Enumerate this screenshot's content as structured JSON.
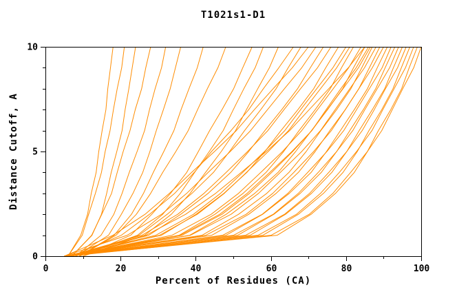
{
  "chart_data": {
    "type": "line",
    "title": "T1021s1-D1",
    "xlabel": "Percent of Residues (CA)",
    "ylabel": "Distance Cutoff, A",
    "xlim": [
      0,
      100
    ],
    "ylim": [
      0,
      10
    ],
    "xticks": {
      "major": [
        0,
        20,
        40,
        60,
        80,
        100
      ],
      "minor": [
        10,
        30,
        50,
        70,
        90
      ]
    },
    "yticks": {
      "major": [
        0,
        5,
        10
      ],
      "minor": [
        1,
        2,
        3,
        4,
        6,
        7,
        8,
        9
      ]
    },
    "grid": false,
    "legend": false,
    "line_color": "#FF8C00",
    "axis_color": "#000000",
    "background": "#FFFFFF",
    "y_levels": [
      0,
      1,
      2,
      3,
      4,
      5,
      6,
      7,
      8,
      9,
      10
    ],
    "series": [
      {
        "x": [
          6,
          9.4,
          11.2,
          12.2,
          13.5,
          14.2,
          15.1,
          16.1,
          16.6,
          17.3,
          18
        ]
      },
      {
        "x": [
          6,
          9.8,
          11.5,
          13.3,
          14.9,
          15.9,
          17.2,
          18.1,
          19.1,
          20.3,
          21
        ]
      },
      {
        "x": [
          7,
          12.4,
          14.9,
          16.3,
          17.5,
          19.0,
          20.4,
          21.2,
          22.2,
          23.1,
          24
        ]
      },
      {
        "x": [
          7,
          12.3,
          15.0,
          17.6,
          19.1,
          20.7,
          22.5,
          23.9,
          25.6,
          26.7,
          28
        ]
      },
      {
        "x": [
          8,
          14.8,
          18.2,
          20.4,
          22.3,
          24.4,
          26.4,
          27.7,
          29.2,
          30.9,
          32
        ]
      },
      {
        "x": [
          8,
          16.8,
          20.2,
          23.3,
          25.9,
          27.8,
          29.5,
          31.4,
          33.2,
          34.6,
          36
        ]
      },
      {
        "x": [
          9,
          18.3,
          22.9,
          26.1,
          28.7,
          31.5,
          34.2,
          36.1,
          38.2,
          40.4,
          42
        ]
      },
      {
        "x": [
          9,
          18.8,
          24.2,
          28.0,
          31.2,
          34.7,
          38.0,
          40.5,
          43.1,
          45.9,
          48
        ]
      },
      {
        "x": [
          10,
          22.7,
          28.3,
          33.3,
          37.6,
          40.7,
          43.7,
          47.0,
          50.1,
          52.5,
          55
        ]
      },
      {
        "x": [
          10,
          26.4,
          33.5,
          38.5,
          42.6,
          46.8,
          50.6,
          53.5,
          56.5,
          59.6,
          62
        ]
      },
      {
        "x": [
          9,
          24.5,
          31.2,
          35.9,
          39.7,
          43.6,
          47.3,
          50.0,
          52.8,
          55.8,
          58
        ]
      },
      {
        "x": [
          5,
          18.0,
          26.5,
          33.0,
          38.9,
          45.0,
          50.8,
          55.6,
          60.6,
          65.7,
          70
        ]
      },
      {
        "x": [
          7,
          20.2,
          27.7,
          34.4,
          39.6,
          44.2,
          49.4,
          54.1,
          58.0,
          62.1,
          66
        ]
      },
      {
        "x": [
          8,
          24.9,
          32.4,
          39.0,
          44.7,
          49.0,
          53.0,
          57.3,
          61.4,
          64.6,
          68
        ]
      },
      {
        "x": [
          5,
          21.8,
          30.9,
          37.6,
          43.3,
          49.2,
          54.6,
          59.1,
          63.6,
          68.2,
          72
        ]
      },
      {
        "x": [
          6,
          27.5,
          36.0,
          43.3,
          49.3,
          54.1,
          58.4,
          62.9,
          67.1,
          70.5,
          74
        ]
      },
      {
        "x": [
          6,
          25.7,
          35.2,
          42.2,
          48.1,
          53.8,
          59.2,
          63.5,
          67.9,
          72.4,
          76
        ]
      },
      {
        "x": [
          5,
          30.9,
          40.1,
          47.5,
          53.6,
          58.4,
          62.7,
          67.2,
          71.4,
          74.6,
          78
        ]
      },
      {
        "x": [
          6,
          29.4,
          39.4,
          46.6,
          52.5,
          58.3,
          63.7,
          67.9,
          72.2,
          76.5,
          80
        ]
      },
      {
        "x": [
          7,
          30.4,
          40.4,
          47.6,
          53.5,
          59.3,
          64.7,
          68.9,
          73.2,
          77.5,
          81
        ]
      },
      {
        "x": [
          5,
          35.6,
          45.1,
          52.6,
          58.7,
          63.4,
          67.5,
          71.8,
          75.8,
          78.8,
          82
        ]
      },
      {
        "x": [
          6,
          26.8,
          37.3,
          45.3,
          52.1,
          58.8,
          65.0,
          70.2,
          75.4,
          80.6,
          85
        ]
      },
      {
        "x": [
          6,
          33.7,
          44.1,
          51.4,
          57.3,
          63.1,
          68.2,
          72.4,
          76.6,
          80.7,
          84
        ]
      },
      {
        "x": [
          5,
          38.4,
          48.1,
          55.7,
          61.9,
          66.6,
          70.8,
          75.1,
          79.1,
          82.0,
          85
        ]
      },
      {
        "x": [
          6,
          36.4,
          47.0,
          54.3,
          60.2,
          65.8,
          70.9,
          74.7,
          78.6,
          82.7,
          86
        ]
      },
      {
        "x": [
          7,
          35.9,
          46.4,
          53.7,
          59.7,
          65.6,
          70.9,
          75.0,
          79.2,
          83.3,
          86.5
        ]
      },
      {
        "x": [
          5,
          41.7,
          51.4,
          58.9,
          64.8,
          69.4,
          73.3,
          77.5,
          81.3,
          84.2,
          87
        ]
      },
      {
        "x": [
          6,
          38.6,
          49.4,
          56.7,
          62.5,
          68.2,
          73.2,
          77.1,
          81.0,
          84.9,
          88
        ]
      },
      {
        "x": [
          5,
          44.3,
          54.1,
          61.4,
          67.3,
          71.8,
          75.7,
          79.8,
          83.4,
          86.2,
          89
        ]
      },
      {
        "x": [
          6,
          42.7,
          53.4,
          60.5,
          66.1,
          71.4,
          76.1,
          79.8,
          83.4,
          87.0,
          90
        ]
      },
      {
        "x": [
          5,
          48.1,
          57.8,
          64.9,
          70.7,
          74.8,
          78.5,
          82.2,
          85.7,
          88.3,
          91
        ]
      },
      {
        "x": [
          6,
          47.2,
          57.7,
          64.5,
          69.8,
          74.9,
          79.4,
          82.8,
          86.2,
          89.6,
          92
        ]
      },
      {
        "x": [
          5,
          51.2,
          60.8,
          67.8,
          73.4,
          77.5,
          81.0,
          84.6,
          87.9,
          90.4,
          93
        ]
      },
      {
        "x": [
          6,
          50.1,
          60.6,
          67.3,
          72.6,
          77.5,
          81.8,
          85.0,
          88.3,
          91.6,
          94
        ]
      },
      {
        "x": [
          5,
          54.5,
          63.9,
          70.8,
          76.2,
          80.2,
          83.5,
          87.0,
          90.3,
          92.6,
          95
        ]
      },
      {
        "x": [
          6,
          53.3,
          63.6,
          70.3,
          75.4,
          80.2,
          84.3,
          87.5,
          90.5,
          93.7,
          96
        ]
      },
      {
        "x": [
          5,
          57.9,
          67.3,
          74.0,
          79.2,
          83.0,
          86.1,
          89.5,
          92.5,
          94.7,
          97
        ]
      },
      {
        "x": [
          6,
          56.6,
          66.8,
          73.2,
          78.2,
          82.8,
          86.9,
          89.8,
          92.8,
          95.8,
          98
        ]
      },
      {
        "x": [
          5,
          61.7,
          70.7,
          77.2,
          82.2,
          85.7,
          88.6,
          91.9,
          94.8,
          96.8,
          99
        ]
      },
      {
        "x": [
          6,
          60.1,
          70.2,
          76.5,
          81.2,
          85.7,
          89.5,
          92.3,
          95.1,
          98.0,
          100
        ]
      }
    ]
  }
}
